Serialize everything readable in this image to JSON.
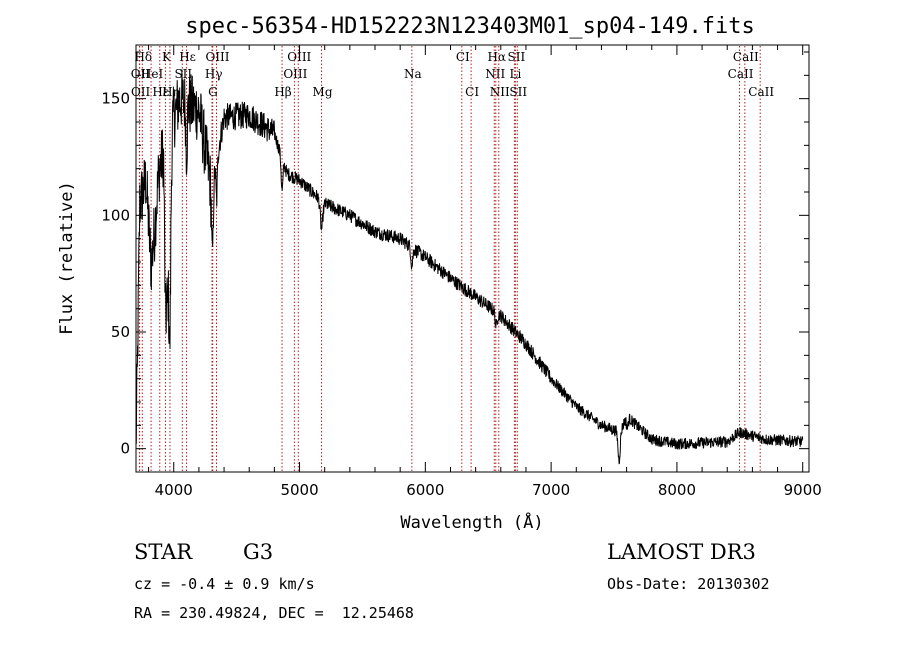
{
  "chart_data": {
    "type": "line",
    "title": "spec-56354-HD152223N123403M01_sp04-149.fits",
    "xlabel": "Wavelength (Å)",
    "ylabel": "Flux (relative)",
    "xlim": [
      3700,
      9050
    ],
    "ylim": [
      -10,
      173
    ],
    "xticks": [
      4000,
      5000,
      6000,
      7000,
      8000,
      9000
    ],
    "yticks": [
      0,
      50,
      100,
      150
    ],
    "line_color": "#000000",
    "marker_color": "#b22222",
    "spectrum_anchors": [
      {
        "x": 3700,
        "y": 0
      },
      {
        "x": 3710,
        "y": 30
      },
      {
        "x": 3730,
        "y": 105
      },
      {
        "x": 3780,
        "y": 115
      },
      {
        "x": 3820,
        "y": 78
      },
      {
        "x": 3850,
        "y": 95
      },
      {
        "x": 3880,
        "y": 118
      },
      {
        "x": 3920,
        "y": 128
      },
      {
        "x": 3950,
        "y": 65
      },
      {
        "x": 3990,
        "y": 140
      },
      {
        "x": 4050,
        "y": 150
      },
      {
        "x": 4100,
        "y": 148
      },
      {
        "x": 4200,
        "y": 145
      },
      {
        "x": 4300,
        "y": 112
      },
      {
        "x": 4400,
        "y": 142
      },
      {
        "x": 4600,
        "y": 143
      },
      {
        "x": 4800,
        "y": 135
      },
      {
        "x": 4900,
        "y": 118
      },
      {
        "x": 5000,
        "y": 115
      },
      {
        "x": 5200,
        "y": 105
      },
      {
        "x": 5400,
        "y": 100
      },
      {
        "x": 5600,
        "y": 93
      },
      {
        "x": 5800,
        "y": 90
      },
      {
        "x": 6000,
        "y": 82
      },
      {
        "x": 6200,
        "y": 73
      },
      {
        "x": 6400,
        "y": 65
      },
      {
        "x": 6600,
        "y": 57
      },
      {
        "x": 6800,
        "y": 45
      },
      {
        "x": 7000,
        "y": 30
      },
      {
        "x": 7200,
        "y": 18
      },
      {
        "x": 7400,
        "y": 10
      },
      {
        "x": 7550,
        "y": 7
      },
      {
        "x": 7600,
        "y": 14
      },
      {
        "x": 7700,
        "y": 9
      },
      {
        "x": 7800,
        "y": 4
      },
      {
        "x": 8000,
        "y": 2
      },
      {
        "x": 8400,
        "y": 3
      },
      {
        "x": 8500,
        "y": 7
      },
      {
        "x": 8700,
        "y": 4
      },
      {
        "x": 9000,
        "y": 3
      }
    ],
    "absorption_features": [
      {
        "x": 3934,
        "depth": 40,
        "width": 10
      },
      {
        "x": 3969,
        "depth": 55,
        "width": 10
      },
      {
        "x": 4102,
        "depth": 20,
        "width": 8
      },
      {
        "x": 4308,
        "depth": 30,
        "width": 10
      },
      {
        "x": 4341,
        "depth": 18,
        "width": 8
      },
      {
        "x": 4861,
        "depth": 14,
        "width": 10
      },
      {
        "x": 5175,
        "depth": 12,
        "width": 14
      },
      {
        "x": 5893,
        "depth": 8,
        "width": 10
      },
      {
        "x": 6563,
        "depth": 6,
        "width": 10
      },
      {
        "x": 7540,
        "depth": 12,
        "width": 12
      },
      {
        "x": 7605,
        "depth": 5,
        "width": 10
      }
    ],
    "noise": [
      {
        "x0": 3700,
        "x1": 4300,
        "amp": 14
      },
      {
        "x0": 4300,
        "x1": 4800,
        "amp": 6
      },
      {
        "x0": 4800,
        "x1": 7000,
        "amp": 3
      },
      {
        "x0": 7000,
        "x1": 9050,
        "amp": 2.5
      }
    ],
    "line_markers": [
      {
        "label": "Hδ",
        "x": 3750,
        "row": 1
      },
      {
        "label": "K",
        "x": 3934,
        "row": 1
      },
      {
        "label": "Hε",
        "x": 4102,
        "row": 1
      },
      {
        "label": "OIII",
        "x": 4340,
        "row": 1
      },
      {
        "label": "OIII",
        "x": 4990,
        "row": 1
      },
      {
        "label": "CI",
        "x": 6290,
        "row": 1
      },
      {
        "label": "Hα",
        "x": 6560,
        "row": 1
      },
      {
        "label": "SII",
        "x": 6716,
        "row": 1
      },
      {
        "label": "CaII",
        "x": 8540,
        "row": 1
      },
      {
        "label": "OII",
        "x": 3727,
        "row": 2
      },
      {
        "label": "HeI",
        "x": 3820,
        "row": 2
      },
      {
        "label": "SII",
        "x": 4068,
        "row": 2
      },
      {
        "label": "Hγ",
        "x": 4310,
        "row": 2
      },
      {
        "label": "OIII",
        "x": 4959,
        "row": 2
      },
      {
        "label": "Na",
        "x": 5893,
        "row": 2
      },
      {
        "label": "NII",
        "x": 6548,
        "row": 2
      },
      {
        "label": "Li",
        "x": 6708,
        "row": 2
      },
      {
        "label": "CaII",
        "x": 8498,
        "row": 2
      },
      {
        "label": "OII",
        "x": 3729,
        "row": 3
      },
      {
        "label": "Hε",
        "x": 3889,
        "row": 3
      },
      {
        "label": "Hη",
        "x": 3970,
        "row": 3
      },
      {
        "label": "G",
        "x": 4304,
        "row": 3
      },
      {
        "label": "Hβ",
        "x": 4861,
        "row": 3
      },
      {
        "label": "Mg",
        "x": 5175,
        "row": 3
      },
      {
        "label": "CI",
        "x": 6364,
        "row": 3
      },
      {
        "label": "NII",
        "x": 6584,
        "row": 3
      },
      {
        "label": "SII",
        "x": 6731,
        "row": 3
      },
      {
        "label": "CaII",
        "x": 8662,
        "row": 3
      }
    ]
  },
  "info": {
    "object_type": "STAR",
    "subclass": "G3",
    "survey": "LAMOST DR3",
    "cz": "cz = -0.4 ± 0.9 km/s",
    "obs_date": "Obs-Date: 20130302",
    "coords": "RA = 230.49824, DEC =  12.25468"
  }
}
